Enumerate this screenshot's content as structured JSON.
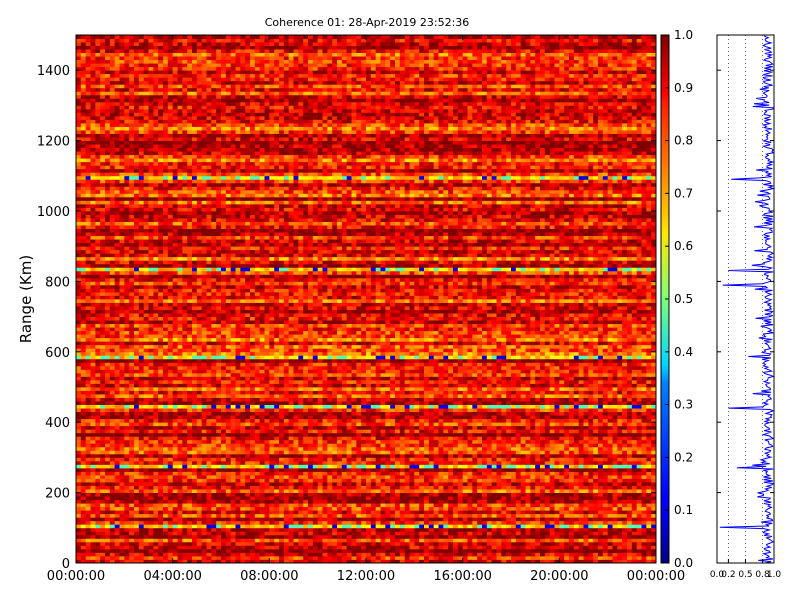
{
  "chart_data": {
    "type": "heatmap",
    "title": "Coherence 01: 28-Apr-2019 23:52:36",
    "xlabel": "",
    "ylabel": "Range (Km)",
    "x_ticks": [
      "00:00:00",
      "04:00:00",
      "08:00:00",
      "12:00:00",
      "16:00:00",
      "20:00:00",
      "00:00:00"
    ],
    "y_ticks": [
      "0",
      "200",
      "400",
      "600",
      "800",
      "1000",
      "1200",
      "1400"
    ],
    "ylim": [
      0,
      1500
    ],
    "xlim_hours": [
      0,
      24
    ],
    "colorbar": {
      "colormap": "jet",
      "range": [
        0.0,
        1.0
      ],
      "ticks": [
        "0.0",
        "0.1",
        "0.2",
        "0.3",
        "0.4",
        "0.5",
        "0.6",
        "0.7",
        "0.8",
        "0.9",
        "1.0"
      ]
    },
    "range_profile": {
      "type": "line",
      "xlim": [
        0,
        1
      ],
      "x_ticks": [
        "0.0",
        "0.2",
        "0.5",
        "0.8",
        "1.0"
      ],
      "grid": "dotted vertical",
      "color": "#0000ff",
      "dips": [
        {
          "range_km": 100,
          "coherence": 0.05
        },
        {
          "range_km": 270,
          "coherence": 0.35
        },
        {
          "range_km": 440,
          "coherence": 0.2
        },
        {
          "range_km": 585,
          "coherence": 0.55
        },
        {
          "range_km": 790,
          "coherence": 0.1
        },
        {
          "range_km": 830,
          "coherence": 0.2
        },
        {
          "range_km": 955,
          "coherence": 0.65
        },
        {
          "range_km": 1090,
          "coherence": 0.25
        },
        {
          "range_km": 1305,
          "coherence": 0.65
        },
        {
          "range_km": 1345,
          "coherence": 0.75
        }
      ],
      "typical_coherence": 0.9
    },
    "low_coherence_bands_km": [
      100,
      270,
      440,
      585,
      830,
      1090
    ],
    "typical_value_range": [
      0.75,
      1.0
    ]
  },
  "colors": {
    "profile_line": "#0000ff",
    "axes": "#000000",
    "background": "#ffffff"
  }
}
